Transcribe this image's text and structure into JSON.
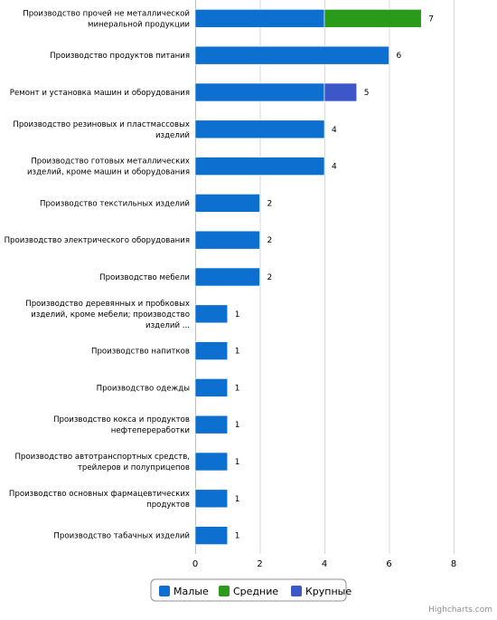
{
  "chart_data": {
    "type": "bar",
    "orientation": "horizontal",
    "stacking": "normal",
    "categories": [
      "Производство прочей не металлической минеральной продукции",
      "Производство продуктов питания",
      "Ремонт и установка машин и оборудования",
      "Производство резиновых и пластмассовых изделий",
      "Производство готовых металлических изделий, кроме машин и оборудования",
      "Производство текстильных изделий",
      "Производство электрического оборудования",
      "Производство мебели",
      "Производство деревянных и пробковых изделий, кроме мебели; производство изделий ...",
      "Производство напитков",
      "Производство одежды",
      "Производство кокса и продуктов нефтепереработки",
      "Производство автотранспортных средств, трейлеров и полуприцепов",
      "Производство основных фармацевтических продуктов",
      "Производство табачных изделий"
    ],
    "category_lines": [
      [
        "Производство прочей не металлической",
        "минеральной продукции"
      ],
      [
        "Производство продуктов питания"
      ],
      [
        "Ремонт и установка машин и оборудования"
      ],
      [
        "Производство резиновых и пластмассовых",
        "изделий"
      ],
      [
        "Производство готовых металлических",
        "изделий, кроме машин и оборудования"
      ],
      [
        "Производство текстильных изделий"
      ],
      [
        "Производство электрического оборудования"
      ],
      [
        "Производство мебели"
      ],
      [
        "Производство деревянных и пробковых",
        "изделий, кроме мебели; производство",
        "изделий ..."
      ],
      [
        "Производство напитков"
      ],
      [
        "Производство одежды"
      ],
      [
        "Производство кокса и продуктов",
        "нефтепереработки"
      ],
      [
        "Производство автотранспортных средств,",
        "трейлеров и полуприцепов"
      ],
      [
        "Производство основных фармацевтических",
        "продуктов"
      ],
      [
        "Производство табачных изделий"
      ]
    ],
    "series": [
      {
        "name": "Малые",
        "color": "#0d6fcf",
        "values": [
          4,
          6,
          4,
          4,
          4,
          2,
          2,
          2,
          1,
          1,
          1,
          1,
          1,
          1,
          1
        ]
      },
      {
        "name": "Средние",
        "color": "#2a9a1a",
        "values": [
          3,
          0,
          0,
          0,
          0,
          0,
          0,
          0,
          0,
          0,
          0,
          0,
          0,
          0,
          0
        ]
      },
      {
        "name": "Крупные",
        "color": "#3d57c8",
        "values": [
          0,
          0,
          1,
          0,
          0,
          0,
          0,
          0,
          0,
          0,
          0,
          0,
          0,
          0,
          0
        ]
      }
    ],
    "totals": [
      7,
      6,
      5,
      4,
      4,
      2,
      2,
      2,
      1,
      1,
      1,
      1,
      1,
      1,
      1
    ],
    "xlim": [
      0,
      8
    ],
    "x_ticks": [
      0,
      2,
      4,
      6,
      8
    ],
    "grid": true,
    "legend_position": "bottom-center",
    "credits": "Highcharts.com"
  }
}
